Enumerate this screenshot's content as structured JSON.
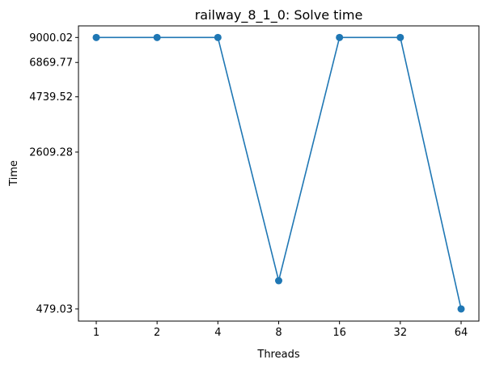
{
  "chart_data": {
    "type": "line",
    "title": "railway_8_1_0: Solve time",
    "xlabel": "Threads",
    "ylabel": "Time",
    "x_tick_labels": [
      "1",
      "2",
      "4",
      "8",
      "16",
      "32",
      "64"
    ],
    "y_tick_values": [
      479.03,
      2609.28,
      4739.52,
      6869.77,
      9000.02
    ],
    "y_tick_labels": [
      "479.03",
      "2609.28",
      "4739.52",
      "6869.77",
      "9000.02"
    ],
    "y_scale": "log",
    "ylim": [
      420,
      10200
    ],
    "grid": false,
    "series": [
      {
        "x": [
          1,
          2,
          4,
          8,
          16,
          32,
          64
        ],
        "values": [
          9000.02,
          9000.02,
          9000.02,
          650,
          9000.02,
          9000.02,
          479.03
        ]
      }
    ],
    "colors": {
      "line": "#1f77b4"
    }
  }
}
